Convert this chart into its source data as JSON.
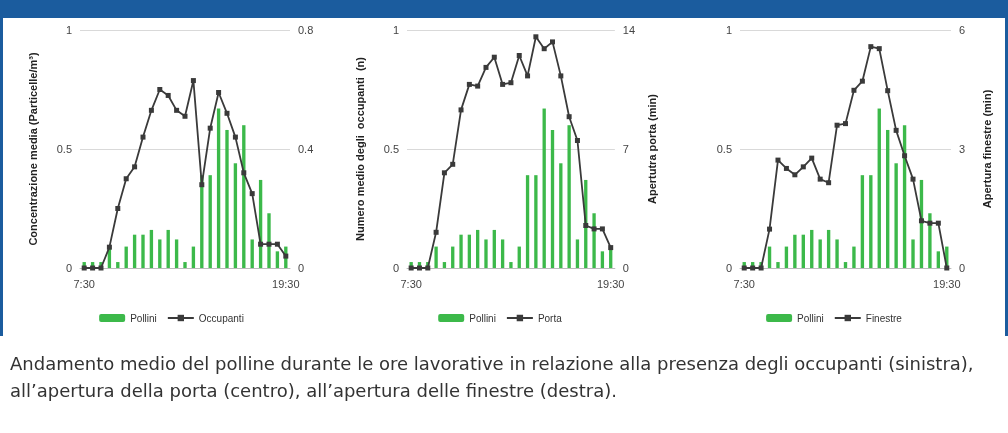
{
  "chart_data": [
    {
      "type": "bar",
      "ylabel": "Concentrazione media (Particelle/m³)",
      "categories": [
        "7:30",
        null,
        null,
        null,
        null,
        null,
        null,
        null,
        null,
        null,
        null,
        null,
        null,
        null,
        null,
        null,
        null,
        null,
        null,
        null,
        null,
        null,
        null,
        null,
        "19:30"
      ],
      "ylim": [
        0,
        1
      ],
      "yticks": [
        0,
        0.5,
        1
      ],
      "y2lim": [
        0,
        0.8
      ],
      "y2ticks": [
        0,
        0.4,
        0.8
      ],
      "grid": "y",
      "legend": "bottom",
      "marker": "square",
      "series": [
        {
          "name": "Pollini",
          "color": "#3cb94a",
          "values": [
            0.025,
            0.025,
            0.025,
            0.09,
            0.025,
            0.09,
            0.14,
            0.14,
            0.16,
            0.12,
            0.16,
            0.12,
            0.025,
            0.09,
            0.39,
            0.39,
            0.67,
            0.58,
            0.44,
            0.6,
            0.12,
            0.37,
            0.23,
            0.07,
            0.09
          ]
        },
        {
          "name": "Occupanti",
          "type": "line",
          "axis": "y2",
          "color": "#3a3a3a",
          "values": [
            0,
            0,
            0,
            0.07,
            0.2,
            0.3,
            0.34,
            0.44,
            0.53,
            0.6,
            0.58,
            0.53,
            0.51,
            0.63,
            0.28,
            0.47,
            0.59,
            0.52,
            0.44,
            0.32,
            0.25,
            0.08,
            0.08,
            0.08,
            0.04
          ]
        }
      ]
    },
    {
      "type": "bar",
      "ylabel": "Numero medio degli  occupanti  (n)",
      "y2label": "Apertutra porta (min)",
      "categories": [
        "7:30",
        null,
        null,
        null,
        null,
        null,
        null,
        null,
        null,
        null,
        null,
        null,
        null,
        null,
        null,
        null,
        null,
        null,
        null,
        null,
        null,
        null,
        null,
        null,
        "19:30"
      ],
      "ylim": [
        0,
        1
      ],
      "yticks": [
        0,
        0.5,
        1
      ],
      "y2lim": [
        0,
        14
      ],
      "y2ticks": [
        0,
        7,
        14
      ],
      "grid": "y",
      "legend": "bottom",
      "marker": "square",
      "series": [
        {
          "name": "Pollini",
          "color": "#3cb94a",
          "values": [
            0.025,
            0.025,
            0.025,
            0.09,
            0.025,
            0.09,
            0.14,
            0.14,
            0.16,
            0.12,
            0.16,
            0.12,
            0.025,
            0.09,
            0.39,
            0.39,
            0.67,
            0.58,
            0.44,
            0.6,
            0.12,
            0.37,
            0.23,
            0.07,
            0.09
          ]
        },
        {
          "name": "Porta",
          "type": "line",
          "axis": "y2",
          "color": "#3a3a3a",
          "values": [
            0,
            0,
            0,
            2.1,
            5.6,
            6.1,
            9.3,
            10.8,
            10.7,
            11.8,
            12.4,
            10.8,
            10.9,
            12.5,
            11.3,
            13.6,
            12.9,
            13.3,
            11.3,
            8.9,
            7.5,
            2.5,
            2.3,
            2.3,
            1.2
          ]
        }
      ]
    },
    {
      "type": "bar",
      "y2label": "Apertura finestre (min)",
      "categories": [
        "7:30",
        null,
        null,
        null,
        null,
        null,
        null,
        null,
        null,
        null,
        null,
        null,
        null,
        null,
        null,
        null,
        null,
        null,
        null,
        null,
        null,
        null,
        null,
        null,
        "19:30"
      ],
      "ylim": [
        0,
        1
      ],
      "yticks": [
        0,
        0.5,
        1
      ],
      "y2lim": [
        0,
        6
      ],
      "y2ticks": [
        0,
        3,
        6
      ],
      "grid": "y",
      "legend": "bottom",
      "marker": "square",
      "annotations": [
        "Andamento medio del polline durante le ore lavorative in relazione alla presenza degli occupanti (sinistra), all’apertura della porta (centro), all’apertura delle finestre (destra)."
      ],
      "series": [
        {
          "name": "Pollini",
          "color": "#3cb94a",
          "values": [
            0.025,
            0.025,
            0.025,
            0.09,
            0.025,
            0.09,
            0.14,
            0.14,
            0.16,
            0.12,
            0.16,
            0.12,
            0.025,
            0.09,
            0.39,
            0.39,
            0.67,
            0.58,
            0.44,
            0.6,
            0.12,
            0.37,
            0.23,
            0.07,
            0.09
          ]
        },
        {
          "name": "Finestre",
          "type": "line",
          "axis": "y2",
          "color": "#3a3a3a",
          "values": [
            0,
            0,
            0,
            0.98,
            2.72,
            2.51,
            2.35,
            2.55,
            2.77,
            2.24,
            2.15,
            3.6,
            3.64,
            4.48,
            4.71,
            5.58,
            5.53,
            4.47,
            3.47,
            2.83,
            2.24,
            1.19,
            1.13,
            1.13,
            0
          ]
        }
      ]
    }
  ]
}
